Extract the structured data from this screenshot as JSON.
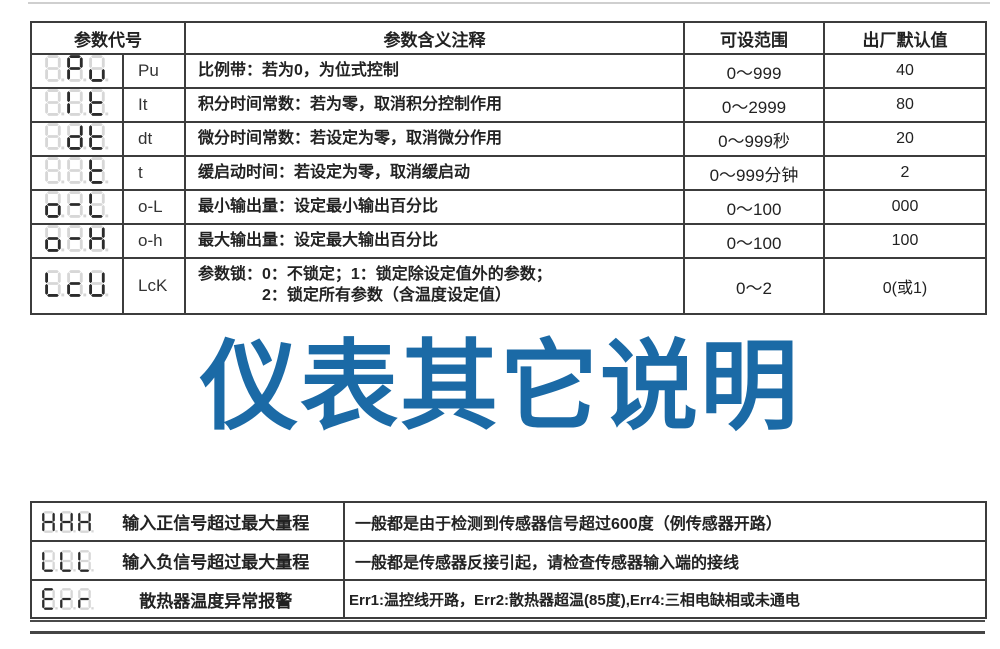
{
  "colors": {
    "accent_blue": "#1b6aa6",
    "table_border": "#3c3c3c",
    "segment_lit": "#2b2b2b",
    "segment_ghost": "#d7d7d7"
  },
  "param_table": {
    "headers": {
      "code": "参数代号",
      "meaning": "参数含义注释",
      "range": "可设范围",
      "default": "出厂默认值"
    },
    "rows": [
      {
        "display": "_Pu",
        "code": "Pu",
        "meaning": "比例带：若为0，为位式控制",
        "range": "0～999",
        "default": "40"
      },
      {
        "display": "_It",
        "code": "It",
        "meaning": "积分时间常数：若为零，取消积分控制作用",
        "range": "0～2999",
        "default": "80"
      },
      {
        "display": "_dt",
        "code": "dt",
        "meaning": "微分时间常数：若设定为零，取消微分作用",
        "range": "0～999秒",
        "default": "20"
      },
      {
        "display": "__t",
        "code": "t",
        "meaning": "缓启动时间：若设定为零，取消缓启动",
        "range": "0～999分钟",
        "default": "2"
      },
      {
        "display": "o-L",
        "code": "o-L",
        "meaning": "最小输出量：设定最小输出百分比",
        "range": "0～100",
        "default": "000"
      },
      {
        "display": "o-H",
        "code": "o-h",
        "meaning": "最大输出量：设定最大输出百分比",
        "range": "0～100",
        "default": "100"
      },
      {
        "display": "LcK",
        "code": "LcK",
        "meaning_line1": "参数锁：0：不锁定；1：锁定除设定值外的参数；",
        "meaning_line2": "2：锁定所有参数（含温度设定值）",
        "range": "0～2",
        "default": "0(或1)"
      }
    ]
  },
  "section_title": "仪表其它说明",
  "error_table": {
    "rows": [
      {
        "display": "HHH",
        "label": "输入正信号超过最大量程",
        "desc": "一般都是由于检测到传感器信号超过600度（例传感器开路）"
      },
      {
        "display": "LLL",
        "label": "输入负信号超过最大量程",
        "desc": "一般都是传感器反接引起，请检查传感器输入端的接线"
      },
      {
        "display": "Err",
        "label": "散热器温度异常报警",
        "desc": "Err1:温控线开路，Err2:散热器超温(85度),Err4:三相电缺相或未通电"
      }
    ]
  }
}
